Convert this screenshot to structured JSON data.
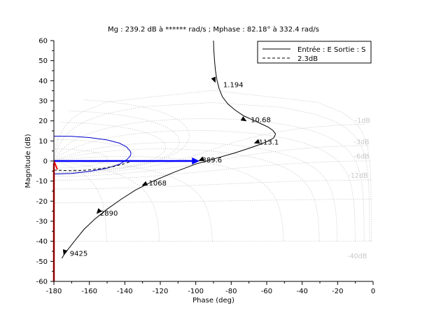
{
  "chart_data": {
    "type": "line",
    "title": "Mg : 239.2 dB à ****** rad/s ; Mphase : 82.18° à  332.4 rad/s",
    "xlabel": "Phase (deg)",
    "ylabel": "Magnitude (dB)",
    "xlim": [
      -180,
      0
    ],
    "ylim": [
      -60,
      60
    ],
    "xticks": [
      -180,
      -160,
      -140,
      -120,
      -100,
      -80,
      -60,
      -40,
      -20,
      0
    ],
    "yticks": [
      -60,
      -50,
      -40,
      -30,
      -20,
      -10,
      0,
      10,
      20,
      30,
      40,
      50,
      60
    ],
    "grid": "nichols isogain and isophase contours",
    "legend_position": "top-right",
    "legend": [
      {
        "label": "Entrée : E Sortie : S",
        "style": "solid",
        "color": "#000000"
      },
      {
        "label": "2.3dB",
        "style": "dashed",
        "color": "#000000"
      }
    ],
    "series": [
      {
        "name": "Entrée : E Sortie : S",
        "color": "#000000",
        "x": [
          -90,
          -89.8,
          -89.4,
          -88.9,
          -88,
          -86.8,
          -85,
          -82,
          -78,
          -73,
          -68,
          -63,
          -59,
          -56.5,
          -55,
          -56,
          -59,
          -64,
          -70,
          -78,
          -88,
          -100,
          -112,
          -124,
          -134,
          -142,
          -150,
          -157,
          -163,
          -168,
          -172,
          -174.5,
          -175.5
        ],
        "y": [
          60,
          55,
          50,
          45,
          40,
          36,
          32,
          28.5,
          25.5,
          22.5,
          20.5,
          18.5,
          16.8,
          15.2,
          13.5,
          11.5,
          10,
          8.2,
          6.3,
          4,
          1.5,
          -1.5,
          -5.5,
          -10,
          -14.5,
          -19,
          -24,
          -29,
          -34,
          -39.5,
          -44,
          -47,
          -48.5
        ]
      },
      {
        "name": "2.3dB",
        "color": "#000000",
        "x": [
          -180,
          -175,
          -170,
          -164,
          -158,
          -152,
          -146,
          -142,
          -138,
          -135,
          -134
        ],
        "y": [
          -4.5,
          -4.7,
          -4.8,
          -4.7,
          -4.3,
          -3.6,
          -2.7,
          -1.8,
          -0.7,
          0.2,
          0.8
        ]
      }
    ],
    "margin_contour": {
      "color": "#0000cc",
      "x": [
        -180,
        -170,
        -160,
        -150,
        -143,
        -139,
        -137,
        -136.5,
        -137,
        -139,
        -143,
        -150,
        -160,
        -170,
        -180
      ],
      "y": [
        12.4,
        12.3,
        11.7,
        10.5,
        8.9,
        7,
        5,
        3.8,
        2.4,
        0.6,
        -1.6,
        -3.6,
        -5.2,
        -6.2,
        -6.5
      ]
    },
    "phase_margin_arrow": {
      "color": "#0000ff",
      "from": [
        -180,
        0
      ],
      "to": [
        -97.8,
        0
      ]
    },
    "gain_margin_arrow": {
      "color": "#ff0000",
      "from": [
        -180,
        -60
      ],
      "to": [
        -180,
        0
      ]
    },
    "flow_arrows": [
      {
        "at": [
          -88.9,
          39
        ],
        "dir": [
          0.4,
          -1
        ]
      },
      {
        "at": [
          -71.3,
          19.8
        ],
        "dir": [
          1.4,
          -0.85
        ]
      },
      {
        "at": [
          -67.2,
          8.8
        ],
        "dir": [
          -1.2,
          -0.45
        ]
      },
      {
        "at": [
          -98.5,
          0
        ],
        "dir": [
          -1.2,
          -0.55
        ]
      },
      {
        "at": [
          -130.5,
          -12.3
        ],
        "dir": [
          -1.1,
          -0.5
        ]
      },
      {
        "at": [
          -156,
          -26.4
        ],
        "dir": [
          -0.7,
          -0.8
        ]
      },
      {
        "at": [
          -174.5,
          -47
        ],
        "dir": [
          -0.3,
          -1
        ]
      }
    ],
    "point_labels": [
      {
        "text": "1.194",
        "x": -84.5,
        "y": 38
      },
      {
        "text": "10.68",
        "x": -69,
        "y": 20.5
      },
      {
        "text": "113.1",
        "x": -64.5,
        "y": 9.5
      },
      {
        "text": "389.6",
        "x": -96.5,
        "y": 0.5
      },
      {
        "text": "1068",
        "x": -126.5,
        "y": -11
      },
      {
        "text": "2890",
        "x": -154,
        "y": -26
      },
      {
        "text": "9425",
        "x": -171,
        "y": -46
      }
    ],
    "isogain_labels": [
      {
        "text": "-1dB",
        "x": -6,
        "y": 20
      },
      {
        "text": "-3dB",
        "x": -6.5,
        "y": 9.5
      },
      {
        "text": "-6dB",
        "x": -6.5,
        "y": 2.2
      },
      {
        "text": "-12dB",
        "x": -8.5,
        "y": -7.4
      },
      {
        "text": "-40dB",
        "x": -9,
        "y": -47.4
      }
    ]
  }
}
